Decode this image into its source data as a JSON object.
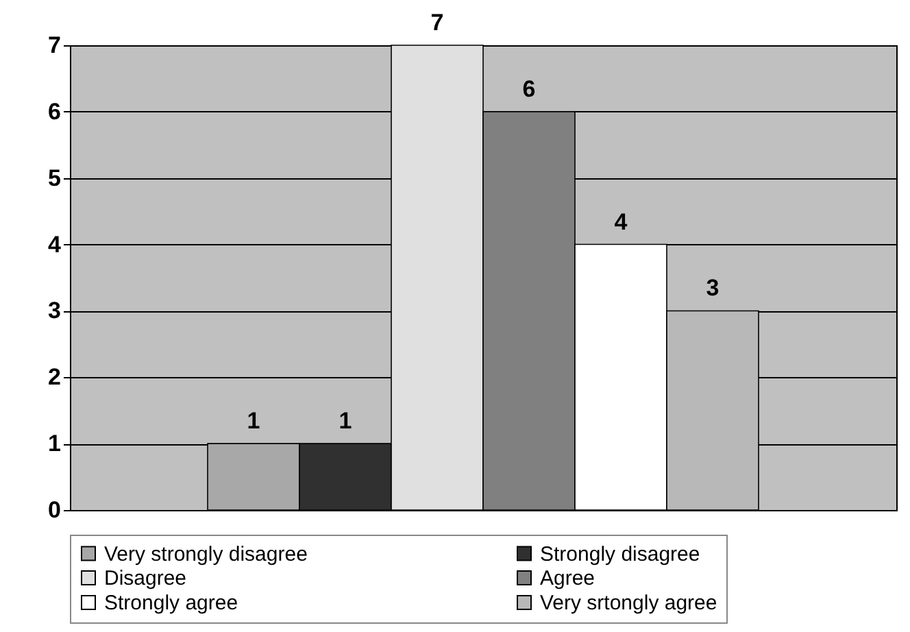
{
  "chart_data": {
    "type": "bar",
    "categories": [
      null
    ],
    "series": [
      {
        "name": "Very strongly disagree",
        "color": "#a8a8a8",
        "values": [
          1
        ]
      },
      {
        "name": "Strongly disagree",
        "color": "#303030",
        "values": [
          1
        ]
      },
      {
        "name": "Disagree",
        "color": "#e0e0e0",
        "values": [
          7
        ]
      },
      {
        "name": "Agree",
        "color": "#808080",
        "values": [
          6
        ]
      },
      {
        "name": "Strongly agree",
        "color": "#ffffff",
        "values": [
          4
        ]
      },
      {
        "name": "Very srtongly agree",
        "color": "#b8b8b8",
        "values": [
          3
        ]
      }
    ],
    "ylim": [
      0,
      7
    ],
    "yticks": [
      0,
      1,
      2,
      3,
      4,
      5,
      6,
      7
    ],
    "grid": "y",
    "legend": "bottom",
    "data_labels": true,
    "tick_labels": "y"
  }
}
